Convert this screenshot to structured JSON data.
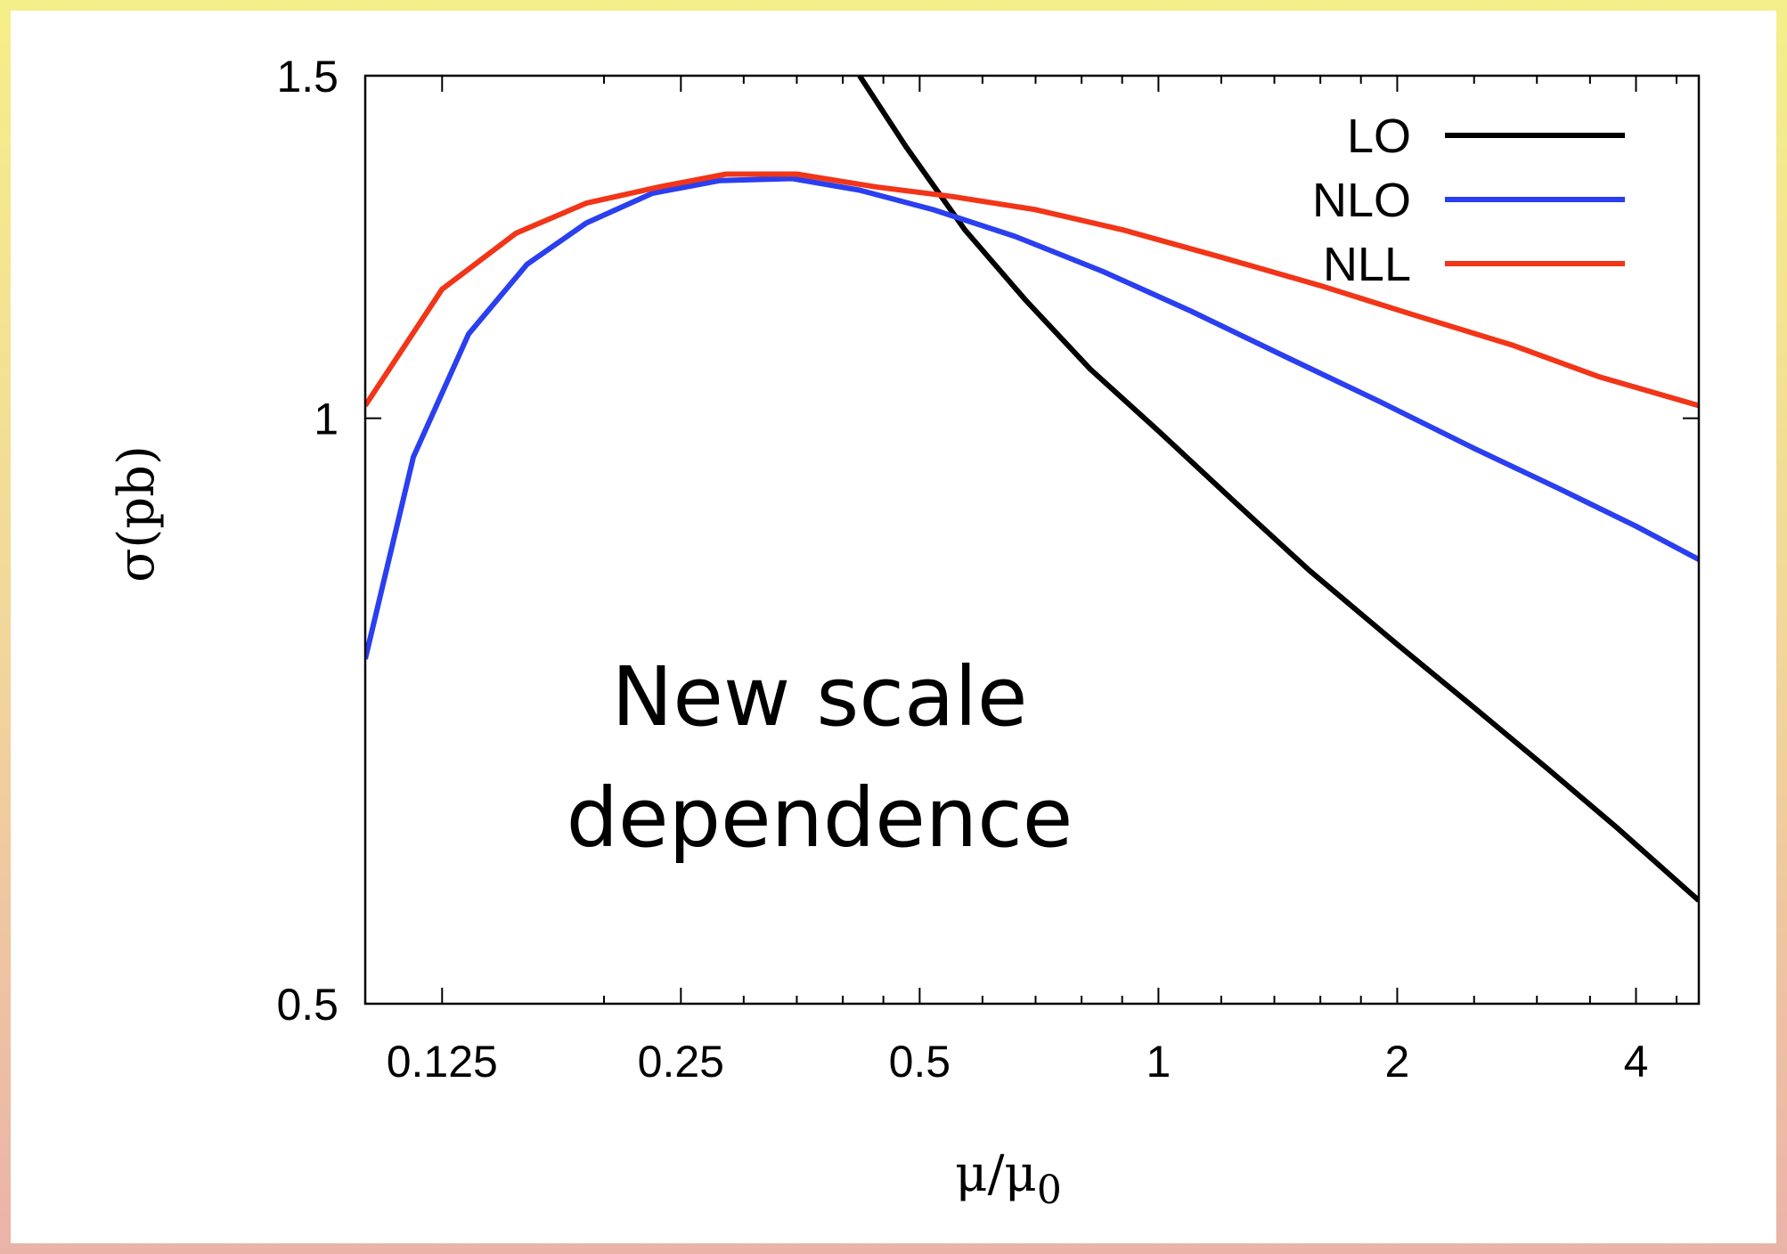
{
  "chart_data": {
    "type": "line",
    "x_scale": "log",
    "y_scale": "log",
    "xlabel": "μ/μ",
    "xlabel_sub": "0",
    "ylabel": "σ(pb)",
    "xlim": [
      0.1,
      4.8
    ],
    "ylim": [
      0.5,
      1.5
    ],
    "x_ticks": [
      {
        "value": 0.125,
        "label": "0.125"
      },
      {
        "value": 0.25,
        "label": "0.25"
      },
      {
        "value": 0.5,
        "label": "0.5"
      },
      {
        "value": 1,
        "label": "1"
      },
      {
        "value": 2,
        "label": "2"
      },
      {
        "value": 4,
        "label": "4"
      }
    ],
    "y_ticks": [
      {
        "value": 0.5,
        "label": "0.5"
      },
      {
        "value": 1,
        "label": "1"
      },
      {
        "value": 1.5,
        "label": "1.5"
      }
    ],
    "legend_position": "top-right",
    "annotation": [
      "New scale",
      "dependence"
    ],
    "series": [
      {
        "name": "LO",
        "color": "#000000",
        "points": [
          [
            0.42,
            1.5
          ],
          [
            0.48,
            1.38
          ],
          [
            0.57,
            1.25
          ],
          [
            0.68,
            1.15
          ],
          [
            0.82,
            1.06
          ],
          [
            1.0,
            0.985
          ],
          [
            1.25,
            0.905
          ],
          [
            1.55,
            0.835
          ],
          [
            2.0,
            0.765
          ],
          [
            2.5,
            0.71
          ],
          [
            3.1,
            0.66
          ],
          [
            3.8,
            0.615
          ],
          [
            4.8,
            0.565
          ]
        ]
      },
      {
        "name": "NLO",
        "color": "#2a3ff0",
        "points": [
          [
            0.1,
            0.752
          ],
          [
            0.115,
            0.955
          ],
          [
            0.135,
            1.105
          ],
          [
            0.16,
            1.2
          ],
          [
            0.19,
            1.26
          ],
          [
            0.23,
            1.305
          ],
          [
            0.28,
            1.325
          ],
          [
            0.345,
            1.328
          ],
          [
            0.42,
            1.31
          ],
          [
            0.52,
            1.28
          ],
          [
            0.66,
            1.24
          ],
          [
            0.85,
            1.19
          ],
          [
            1.1,
            1.135
          ],
          [
            1.45,
            1.075
          ],
          [
            1.9,
            1.02
          ],
          [
            2.5,
            0.965
          ],
          [
            3.2,
            0.92
          ],
          [
            4.0,
            0.88
          ],
          [
            4.8,
            0.846
          ]
        ]
      },
      {
        "name": "NLL",
        "color": "#f23518",
        "points": [
          [
            0.1,
            1.015
          ],
          [
            0.125,
            1.165
          ],
          [
            0.155,
            1.245
          ],
          [
            0.19,
            1.29
          ],
          [
            0.235,
            1.315
          ],
          [
            0.285,
            1.335
          ],
          [
            0.35,
            1.335
          ],
          [
            0.44,
            1.315
          ],
          [
            0.55,
            1.3
          ],
          [
            0.7,
            1.28
          ],
          [
            0.9,
            1.25
          ],
          [
            1.2,
            1.21
          ],
          [
            1.6,
            1.17
          ],
          [
            2.1,
            1.13
          ],
          [
            2.8,
            1.09
          ],
          [
            3.6,
            1.05
          ],
          [
            4.8,
            1.015
          ]
        ]
      }
    ]
  }
}
